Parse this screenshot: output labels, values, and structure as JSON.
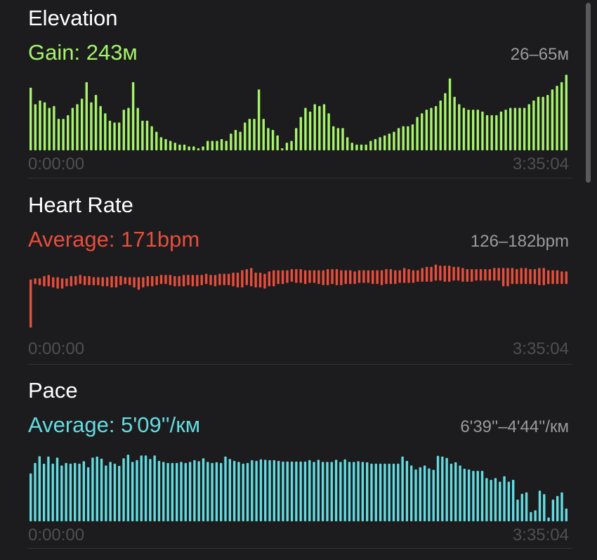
{
  "colors": {
    "elevation": "#a6f46a",
    "heart_rate": "#ea4d3b",
    "pace": "#62dce0",
    "axis_text": "#4f4f53",
    "range_text": "#9a9a9f"
  },
  "elevation": {
    "title": "Elevation",
    "metric": "Gain: 243м",
    "range": "26–65м",
    "time_start": "0:00:00",
    "time_end": "3:35:04"
  },
  "heart_rate": {
    "title": "Heart Rate",
    "metric": "Average: 171bpm",
    "range": "126–182bpm",
    "time_start": "0:00:00",
    "time_end": "3:35:04"
  },
  "pace": {
    "title": "Pace",
    "metric": "Average: 5'09''/км",
    "range": "6'39''–4'44''/км",
    "time_start": "0:00:00",
    "time_end": "3:35:04"
  },
  "chart_data": [
    {
      "type": "bar",
      "name": "elevation",
      "ylim": [
        26,
        65
      ],
      "values": [
        59,
        50,
        52,
        51,
        48,
        49,
        42,
        42,
        44,
        48,
        50,
        53,
        62,
        51,
        55,
        49,
        45,
        41,
        40,
        40,
        47,
        48,
        62,
        48,
        41,
        41,
        38,
        35,
        32,
        31,
        30,
        29,
        28,
        28,
        27,
        27,
        26,
        27,
        30,
        30,
        30,
        31,
        30,
        34,
        36,
        35,
        40,
        42,
        42,
        58,
        42,
        37,
        36,
        33,
        26,
        29,
        30,
        37,
        43,
        48,
        46,
        50,
        49,
        50,
        45,
        38,
        37,
        37,
        32,
        29,
        28,
        28,
        28,
        30,
        31,
        32,
        33,
        34,
        35,
        37,
        38,
        38,
        39,
        43,
        45,
        47,
        48,
        49,
        52,
        56,
        64,
        54,
        50,
        48,
        47,
        47,
        47,
        46,
        44,
        44,
        44,
        46,
        47,
        48,
        48,
        48,
        48,
        50,
        52,
        54,
        54,
        55,
        58,
        60,
        62,
        66
      ]
    },
    {
      "type": "bar",
      "name": "heart_rate",
      "ylim": [
        120,
        185
      ],
      "series": [
        {
          "name": "low",
          "values": [
            126,
            164,
            163,
            162,
            162,
            161,
            160,
            160,
            162,
            162,
            163,
            164,
            163,
            163,
            163,
            163,
            162,
            162,
            161,
            161,
            163,
            164,
            163,
            161,
            159,
            161,
            162,
            162,
            163,
            164,
            164,
            163,
            162,
            162,
            162,
            163,
            162,
            162,
            163,
            164,
            163,
            162,
            163,
            163,
            163,
            162,
            161,
            161,
            163,
            162,
            161,
            161,
            160,
            162,
            162,
            164,
            164,
            165,
            166,
            165,
            165,
            164,
            165,
            165,
            164,
            163,
            163,
            164,
            163,
            163,
            164,
            164,
            164,
            165,
            165,
            165,
            164,
            164,
            163,
            164,
            164,
            164,
            165,
            165,
            165,
            165,
            166,
            166,
            166,
            166,
            167,
            167,
            166,
            166,
            167,
            167,
            166,
            166,
            166,
            167,
            167,
            167,
            167,
            167,
            167,
            162,
            162,
            164,
            164,
            164,
            164,
            164,
            164,
            163,
            163,
            164,
            164,
            164,
            164,
            164
          ]
        },
        {
          "name": "high",
          "values": [
            168,
            169,
            169,
            171,
            172,
            170,
            170,
            169,
            169,
            171,
            171,
            172,
            171,
            171,
            170,
            170,
            170,
            170,
            171,
            171,
            171,
            170,
            170,
            170,
            170,
            170,
            171,
            171,
            171,
            172,
            172,
            172,
            171,
            171,
            172,
            172,
            172,
            172,
            172,
            173,
            172,
            172,
            173,
            173,
            173,
            174,
            174,
            176,
            177,
            178,
            174,
            174,
            173,
            175,
            176,
            176,
            176,
            176,
            177,
            177,
            177,
            176,
            176,
            176,
            176,
            176,
            177,
            177,
            177,
            176,
            176,
            176,
            175,
            176,
            176,
            176,
            176,
            176,
            176,
            177,
            177,
            176,
            176,
            178,
            177,
            176,
            176,
            178,
            179,
            179,
            181,
            180,
            180,
            180,
            179,
            179,
            178,
            177,
            177,
            177,
            177,
            177,
            177,
            178,
            178,
            178,
            178,
            178,
            177,
            178,
            178,
            177,
            177,
            178,
            178,
            176,
            176,
            176,
            175,
            175
          ]
        }
      ]
    },
    {
      "type": "bar",
      "name": "pace",
      "ylim": [
        6.65,
        4.67
      ],
      "values": [
        5.37,
        5.08,
        4.89,
        5.1,
        4.9,
        5.1,
        4.93,
        5.15,
        5.08,
        5.1,
        5.08,
        5.1,
        5.03,
        5.2,
        4.93,
        4.9,
        4.96,
        5.15,
        5.05,
        5.1,
        5.16,
        4.95,
        4.85,
        5.05,
        5.0,
        4.87,
        4.87,
        4.97,
        4.87,
        5.02,
        5.05,
        5.08,
        5.08,
        5.08,
        5.05,
        5.08,
        5.05,
        5.0,
        5.03,
        4.95,
        5.05,
        5.08,
        5.06,
        5.08,
        4.9,
        4.97,
        5.02,
        5.05,
        5.1,
        5.08,
        5.0,
        5.02,
        4.98,
        4.99,
        5.0,
        5.0,
        5.02,
        5.04,
        5.04,
        5.04,
        5.04,
        5.04,
        5.04,
        5.0,
        5.05,
        4.99,
        5.05,
        5.05,
        5.05,
        4.99,
        5.05,
        4.98,
        5.05,
        5.05,
        5.03,
        5.05,
        5.06,
        5.1,
        5.1,
        5.1,
        5.1,
        5.1,
        5.1,
        5.1,
        4.9,
        5.02,
        5.15,
        5.26,
        5.2,
        5.15,
        5.23,
        5.27,
        4.88,
        4.9,
        4.94,
        5.1,
        5.06,
        5.15,
        5.24,
        5.26,
        5.3,
        5.3,
        5.3,
        5.5,
        5.55,
        5.5,
        5.6,
        5.45,
        5.6,
        5.55,
        6.1,
        5.94,
        5.9,
        6.45,
        6.4,
        5.85,
        5.95,
        6.6,
        6.1,
        6.0,
        5.9,
        6.35
      ]
    }
  ]
}
